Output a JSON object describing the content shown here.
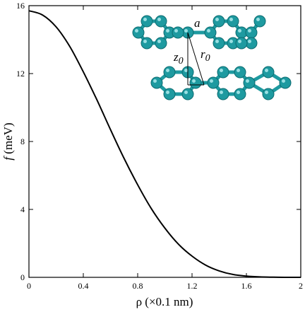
{
  "chart_data": {
    "type": "line",
    "xlabel": "ρ (×0.1 nm)",
    "ylabel_symbol": "f",
    "ylabel_unit": "(meV)",
    "xlim": [
      0,
      2
    ],
    "ylim": [
      0,
      16
    ],
    "xticks": [
      "0",
      "0.4",
      "0.8",
      "1.2",
      "1.6",
      "2"
    ],
    "yticks": [
      "0",
      "4",
      "8",
      "12",
      "16"
    ],
    "grid": false,
    "series": [
      {
        "color": "#000000",
        "x": [
          0,
          0.1,
          0.2,
          0.3,
          0.4,
          0.5,
          0.6,
          0.7,
          0.8,
          0.9,
          1.0,
          1.1,
          1.2,
          1.3,
          1.4,
          1.5,
          1.6,
          1.7,
          1.8,
          1.9,
          2.0
        ],
        "y": [
          15.7,
          15.45,
          14.75,
          13.6,
          12.1,
          10.45,
          8.7,
          7.0,
          5.45,
          4.05,
          2.9,
          1.95,
          1.25,
          0.72,
          0.38,
          0.17,
          0.07,
          0.025,
          0.01,
          0.0,
          0.0
        ]
      }
    ],
    "inset": {
      "labels": {
        "a": "a",
        "z0": "z",
        "z0_sub": "0",
        "r0": "r",
        "r0_sub": "0"
      },
      "atom_color": "#1e9aa0"
    }
  }
}
